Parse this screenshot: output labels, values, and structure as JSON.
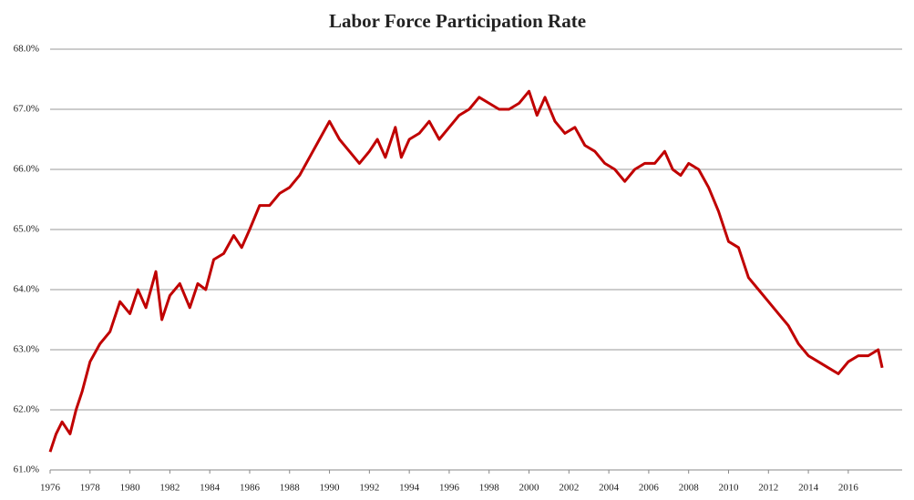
{
  "chart_data": {
    "type": "line",
    "title": "Labor Force Participation Rate",
    "xlim": [
      1976,
      2018.7
    ],
    "xticks": [
      1976,
      1978,
      1980,
      1982,
      1984,
      1986,
      1988,
      1990,
      1992,
      1994,
      1996,
      1998,
      2000,
      2002,
      2004,
      2006,
      2008,
      2010,
      2012,
      2014,
      2016
    ],
    "ylim": [
      61,
      68
    ],
    "yticks": [
      {
        "value": 61,
        "label": "61.0%"
      },
      {
        "value": 62,
        "label": "62.0%"
      },
      {
        "value": 63,
        "label": "63.0%"
      },
      {
        "value": 64,
        "label": "64.0%"
      },
      {
        "value": 65,
        "label": "65.0%"
      },
      {
        "value": 66,
        "label": "66.0%"
      },
      {
        "value": 67,
        "label": "67.0%"
      },
      {
        "value": 68,
        "label": "68.0%"
      }
    ],
    "grid": true,
    "x": [
      1976,
      1976.3,
      1976.6,
      1977,
      1977.3,
      1977.6,
      1978,
      1978.5,
      1979,
      1979.5,
      1980,
      1980.4,
      1980.8,
      1981.3,
      1981.6,
      1982,
      1982.5,
      1983,
      1983.4,
      1983.8,
      1984.2,
      1984.7,
      1985.2,
      1985.6,
      1986,
      1986.5,
      1987,
      1987.5,
      1988,
      1988.5,
      1989,
      1989.5,
      1990,
      1990.5,
      1991,
      1991.5,
      1992,
      1992.4,
      1992.8,
      1993.3,
      1993.6,
      1994,
      1994.5,
      1995,
      1995.5,
      1996,
      1996.5,
      1997,
      1997.5,
      1998,
      1998.5,
      1999,
      1999.5,
      2000,
      2000.4,
      2000.8,
      2001.3,
      2001.8,
      2002.3,
      2002.8,
      2003.3,
      2003.8,
      2004.3,
      2004.8,
      2005.3,
      2005.8,
      2006.3,
      2006.8,
      2007.2,
      2007.6,
      2008,
      2008.5,
      2009,
      2009.5,
      2010,
      2010.5,
      2011,
      2011.5,
      2012,
      2012.5,
      2013,
      2013.5,
      2014,
      2014.5,
      2015,
      2015.5,
      2016,
      2016.5,
      2017,
      2017.5,
      2017.7
    ],
    "series": [
      {
        "name": "Labor Force Participation Rate",
        "color": "#c00000",
        "values": [
          61.3,
          61.6,
          61.8,
          61.6,
          62.0,
          62.3,
          62.8,
          63.1,
          63.3,
          63.8,
          63.6,
          64.0,
          63.7,
          64.3,
          63.5,
          63.9,
          64.1,
          63.7,
          64.1,
          64.0,
          64.5,
          64.6,
          64.9,
          64.7,
          65.0,
          65.4,
          65.4,
          65.6,
          65.7,
          65.9,
          66.2,
          66.5,
          66.8,
          66.5,
          66.3,
          66.1,
          66.3,
          66.5,
          66.2,
          66.7,
          66.2,
          66.5,
          66.6,
          66.8,
          66.5,
          66.7,
          66.9,
          67.0,
          67.2,
          67.1,
          67.0,
          67.0,
          67.1,
          67.3,
          66.9,
          67.2,
          66.8,
          66.6,
          66.7,
          66.4,
          66.3,
          66.1,
          66.0,
          65.8,
          66.0,
          66.1,
          66.1,
          66.3,
          66.0,
          65.9,
          66.1,
          66.0,
          65.7,
          65.3,
          64.8,
          64.7,
          64.2,
          64.0,
          63.8,
          63.6,
          63.4,
          63.1,
          62.9,
          62.8,
          62.7,
          62.6,
          62.8,
          62.9,
          62.9,
          63.0,
          62.7
        ]
      }
    ]
  }
}
